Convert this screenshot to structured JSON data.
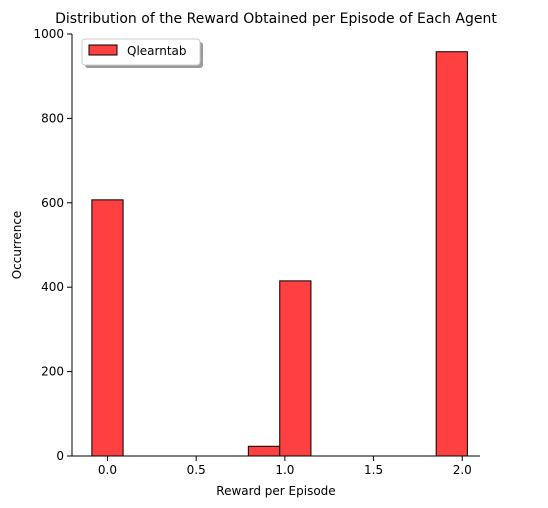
{
  "chart_data": {
    "type": "bar",
    "title": "Distribution of the Reward Obtained per Episode of Each Agent",
    "xlabel": "Reward per Episode",
    "ylabel": "Occurrence",
    "xlim": [
      -0.2,
      2.1
    ],
    "ylim": [
      0,
      1000
    ],
    "xticks": [
      0.0,
      0.5,
      1.0,
      1.5,
      2.0
    ],
    "xtick_labels": [
      "0.0",
      "0.5",
      "1.0",
      "1.5",
      "2.0"
    ],
    "yticks": [
      0,
      200,
      400,
      600,
      800,
      1000
    ],
    "ytick_labels": [
      "0",
      "200",
      "400",
      "600",
      "800",
      "1000"
    ],
    "grid": false,
    "legend_position": "top-left",
    "series": [
      {
        "name": "Qlearntab",
        "color": "#ff4040",
        "edge_color": "#000000",
        "bins": [
          {
            "x0": -0.088,
            "x1": 0.088,
            "value": 607
          },
          {
            "x0": 0.794,
            "x1": 0.971,
            "value": 23
          },
          {
            "x0": 0.971,
            "x1": 1.147,
            "value": 415
          },
          {
            "x0": 1.853,
            "x1": 2.029,
            "value": 958
          }
        ]
      }
    ]
  }
}
